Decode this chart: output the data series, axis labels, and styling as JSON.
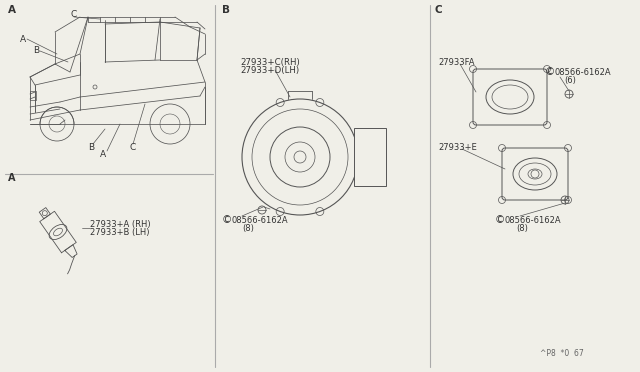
{
  "bg_color": "#f0efe8",
  "line_color": "#555555",
  "text_color": "#333333",
  "div_color": "#aaaaaa",
  "part_labels": {
    "sec_A": "A",
    "sec_B": "B",
    "sec_C": "C",
    "car_label_A": "A",
    "car_label_B": "B",
    "car_label_C": "C",
    "part_A_RH": "27933+A (RH)",
    "part_A_LH": "27933+B (LH)",
    "part_B_RH": "27933+C(RH)",
    "part_B_LH": "27933+D(LH)",
    "part_C_bracket": "27933FA",
    "part_C_speaker": "27933+E",
    "screw_sym": "S",
    "screw_num": "08566-6162A",
    "screw_B_qty": "(8)",
    "screw_C1_qty": "(6)",
    "screw_C2_qty": "(8)",
    "footer": "^P8  *0  67"
  }
}
